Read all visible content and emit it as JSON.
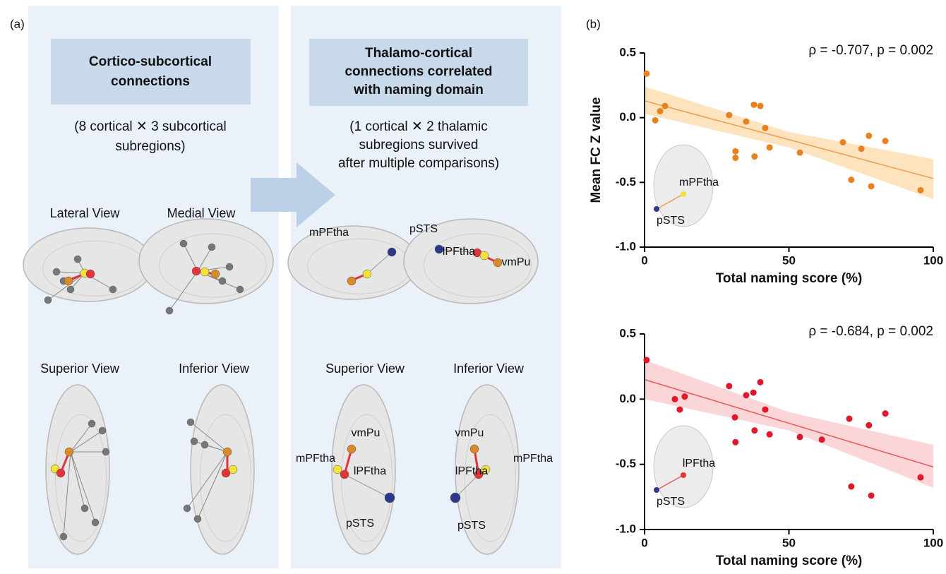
{
  "panel_a": {
    "label": "(a)",
    "left": {
      "header": [
        "Cortico-subcortical",
        "connections"
      ],
      "note": [
        "(8 cortical ✕ 3 subcortical",
        "subregions)"
      ],
      "views": [
        "Lateral View",
        "Medial View",
        "Superior View",
        "Inferior View"
      ]
    },
    "right": {
      "header": [
        "Thalamo-cortical",
        "connections correlated",
        "with naming domain"
      ],
      "note": [
        "(1 cortical ✕ 2 thalamic",
        "subregions survived",
        "after multiple comparisons)"
      ],
      "views": [
        "Superior View",
        "Inferior View"
      ],
      "sagittal_labels": [
        "mPFtha",
        "pSTS",
        "lPFtha",
        "vmPu"
      ],
      "superior_labels": [
        "vmPu",
        "mPFtha",
        "lPFtha",
        "pSTS"
      ],
      "inferior_labels": [
        "vmPu",
        "mPFtha",
        "lPFtha",
        "pSTS"
      ]
    }
  },
  "panel_b_label": "(b)",
  "chart_data": [
    {
      "type": "scatter",
      "ylabel": "Mean FC Z value",
      "xlabel": "Total naming score (%)",
      "annotation": "ρ = -0.707, p = 0.002",
      "inset_labels": [
        "mPFtha",
        "pSTS"
      ],
      "x": [
        0.7,
        3.7,
        5.4,
        7.1,
        29.3,
        31.5,
        31.5,
        35.2,
        37.9,
        38.1,
        40.1,
        41.8,
        43.3,
        53.8,
        68.7,
        71.6,
        75.1,
        77.7,
        78.5,
        83.4,
        95.6
      ],
      "values": [
        0.34,
        -0.02,
        0.05,
        0.09,
        0.02,
        -0.26,
        -0.31,
        -0.03,
        0.1,
        -0.3,
        0.09,
        -0.08,
        -0.23,
        -0.27,
        -0.19,
        -0.48,
        -0.24,
        -0.14,
        -0.53,
        -0.18,
        -0.56
      ],
      "color": "#e8811f",
      "fit_color": "#f29a4a",
      "band_color": "#fde4bf",
      "fit": {
        "x": [
          0,
          100
        ],
        "y": [
          0.13,
          -0.47
        ]
      },
      "ci": {
        "x": [
          0,
          50,
          100
        ],
        "upper": [
          0.24,
          -0.11,
          -0.32
        ],
        "lower": [
          0.03,
          -0.23,
          -0.63
        ]
      },
      "xlim": [
        0,
        100
      ],
      "ylim": [
        -1,
        0.5
      ],
      "xticks": [
        0,
        50,
        100
      ],
      "yticks": [
        0.5,
        {
          "value": 0,
          "label": "0.0"
        },
        -0.5,
        {
          "value": -1,
          "label": "-1.0"
        }
      ]
    },
    {
      "type": "scatter",
      "xlabel": "Total naming score (%)",
      "annotation": "ρ = -0.684, p = 0.002",
      "inset_labels": [
        "lPFtha",
        "pSTS"
      ],
      "x": [
        0.7,
        10.5,
        12.2,
        13.9,
        29.3,
        31.3,
        31.5,
        35.2,
        37.7,
        38.1,
        40.1,
        41.8,
        43.3,
        53.8,
        61.4,
        70.9,
        71.6,
        77.7,
        78.5,
        83.4,
        95.6
      ],
      "values": [
        0.3,
        0.0,
        -0.08,
        0.02,
        0.1,
        -0.14,
        -0.33,
        0.03,
        0.05,
        -0.24,
        0.13,
        -0.08,
        -0.27,
        -0.29,
        -0.31,
        -0.15,
        -0.67,
        -0.2,
        -0.74,
        -0.11,
        -0.6
      ],
      "color": "#e0182a",
      "fit_color": "#e85a5a",
      "band_color": "#fbd6d8",
      "fit": {
        "x": [
          0,
          100
        ],
        "y": [
          0.15,
          -0.52
        ]
      },
      "ci": {
        "x": [
          0,
          50,
          100
        ],
        "upper": [
          0.3,
          -0.1,
          -0.35
        ],
        "lower": [
          0.0,
          -0.24,
          -0.68
        ]
      },
      "xlim": [
        0,
        100
      ],
      "ylim": [
        -1,
        0.5
      ],
      "xticks": [
        0,
        50,
        100
      ],
      "yticks": [
        0.5,
        {
          "value": 0,
          "label": "0.0"
        },
        -0.5,
        {
          "value": -1,
          "label": "-1.0"
        }
      ]
    }
  ]
}
